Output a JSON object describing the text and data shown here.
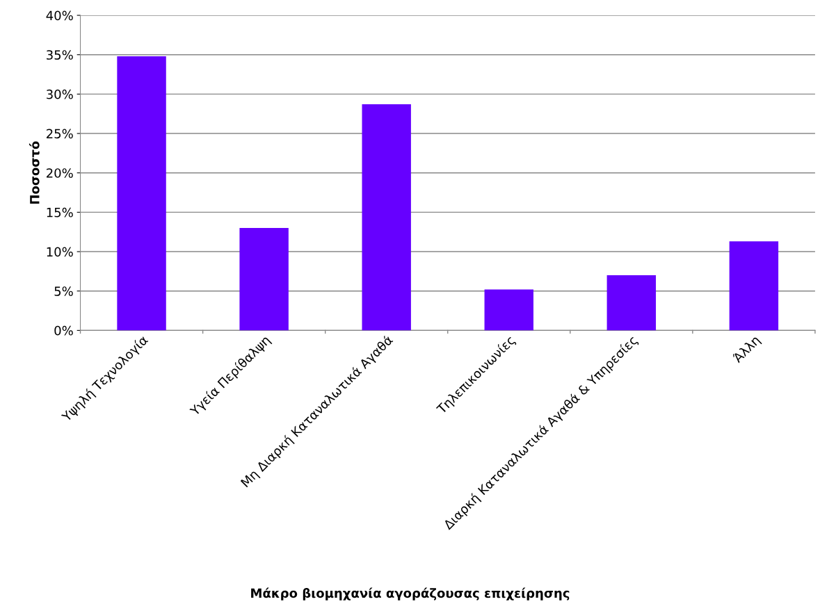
{
  "chart_data": {
    "type": "bar",
    "xlabel": "Μάκρο βιομηχανία αγοράζουσας επιχείρησης",
    "ylabel": "Ποσοστό",
    "categories": [
      "Υψηλή Τεχνολογία",
      "Υγεία Περίθαλψη",
      "Μη Διαρκή Καταναλωτικά Αγαθά",
      "Τηλεπικοινωνίες",
      "Διαρκή Καταναλωτικά Αγαθά & Υπηρεσίες",
      "Άλλη"
    ],
    "values": [
      34.8,
      13.0,
      28.7,
      5.2,
      7.0,
      11.3
    ],
    "color": "#6600ff",
    "ylim": [
      0,
      40
    ],
    "yticks": [
      {
        "value": 0,
        "label": "0%"
      },
      {
        "value": 5,
        "label": "5%"
      },
      {
        "value": 10,
        "label": "10%"
      },
      {
        "value": 15,
        "label": "15%"
      },
      {
        "value": 20,
        "label": "20%"
      },
      {
        "value": 25,
        "label": "25%"
      },
      {
        "value": 30,
        "label": "30%"
      },
      {
        "value": 35,
        "label": "35%"
      },
      {
        "value": 40,
        "label": "40%"
      }
    ],
    "grid": "y"
  }
}
